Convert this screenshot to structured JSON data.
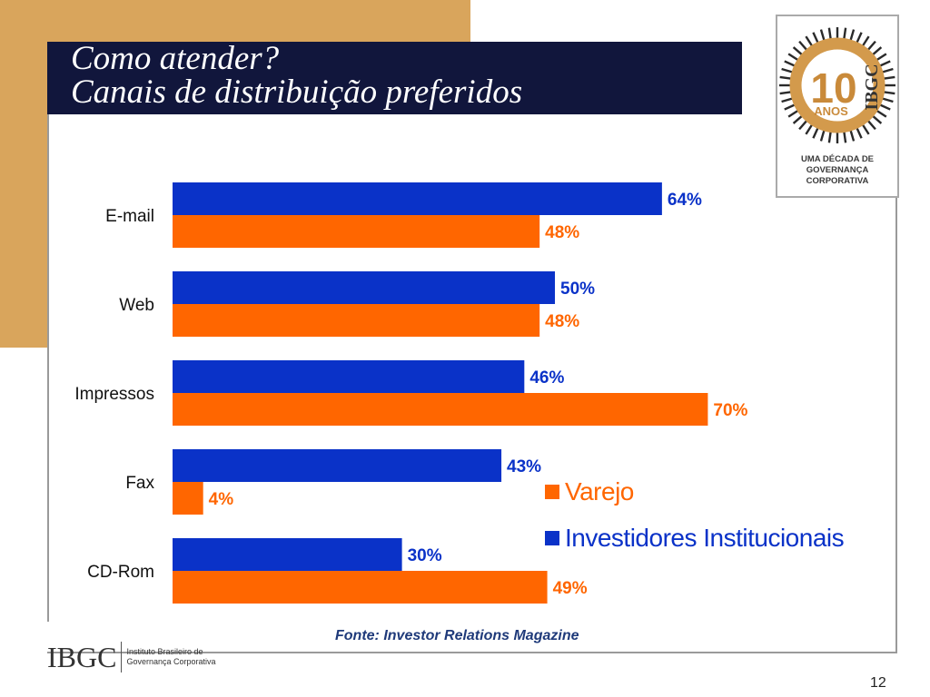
{
  "slide": {
    "title_line1": "Como atender?",
    "title_line2": "Canais de distribuição preferidos",
    "source": "Fonte: Investor Relations Magazine",
    "page_number": "12"
  },
  "badge": {
    "number": "10",
    "anos": "ANOS",
    "brand": "IBGC",
    "line1": "UMA DÉCADA DE",
    "line2": "GOVERNANÇA",
    "line3": "CORPORATIVA"
  },
  "logo": {
    "mark": "IBGC",
    "line1": "Instituto Brasileiro de",
    "line2": "Governança Corporativa"
  },
  "colors": {
    "institutional": "#0A32C8",
    "varejo": "#FF6600",
    "title_bar": "#11163C",
    "accent_tan": "#D9A55C"
  },
  "chart_data": {
    "type": "bar",
    "orientation": "horizontal",
    "categories": [
      "E-mail",
      "Web",
      "Impressos",
      "Fax",
      "CD-Rom"
    ],
    "series": [
      {
        "name": "Investidores Institucionais",
        "values": [
          64,
          50,
          46,
          43,
          30
        ],
        "labels": [
          "64%",
          "50%",
          "46%",
          "43%",
          "30%"
        ],
        "color": "#0A32C8"
      },
      {
        "name": "Varejo",
        "values": [
          48,
          48,
          70,
          4,
          49
        ],
        "labels": [
          "48%",
          "48%",
          "70%",
          "4%",
          "49%"
        ],
        "color": "#FF6600"
      }
    ],
    "value_unit": "%",
    "xlim": [
      0,
      100
    ],
    "grid": false,
    "legend_position": "bottom-right",
    "legend": [
      {
        "label": "Varejo",
        "color": "#FF6600"
      },
      {
        "label": "Investidores Institucionais",
        "color": "#0A32C8"
      }
    ]
  }
}
